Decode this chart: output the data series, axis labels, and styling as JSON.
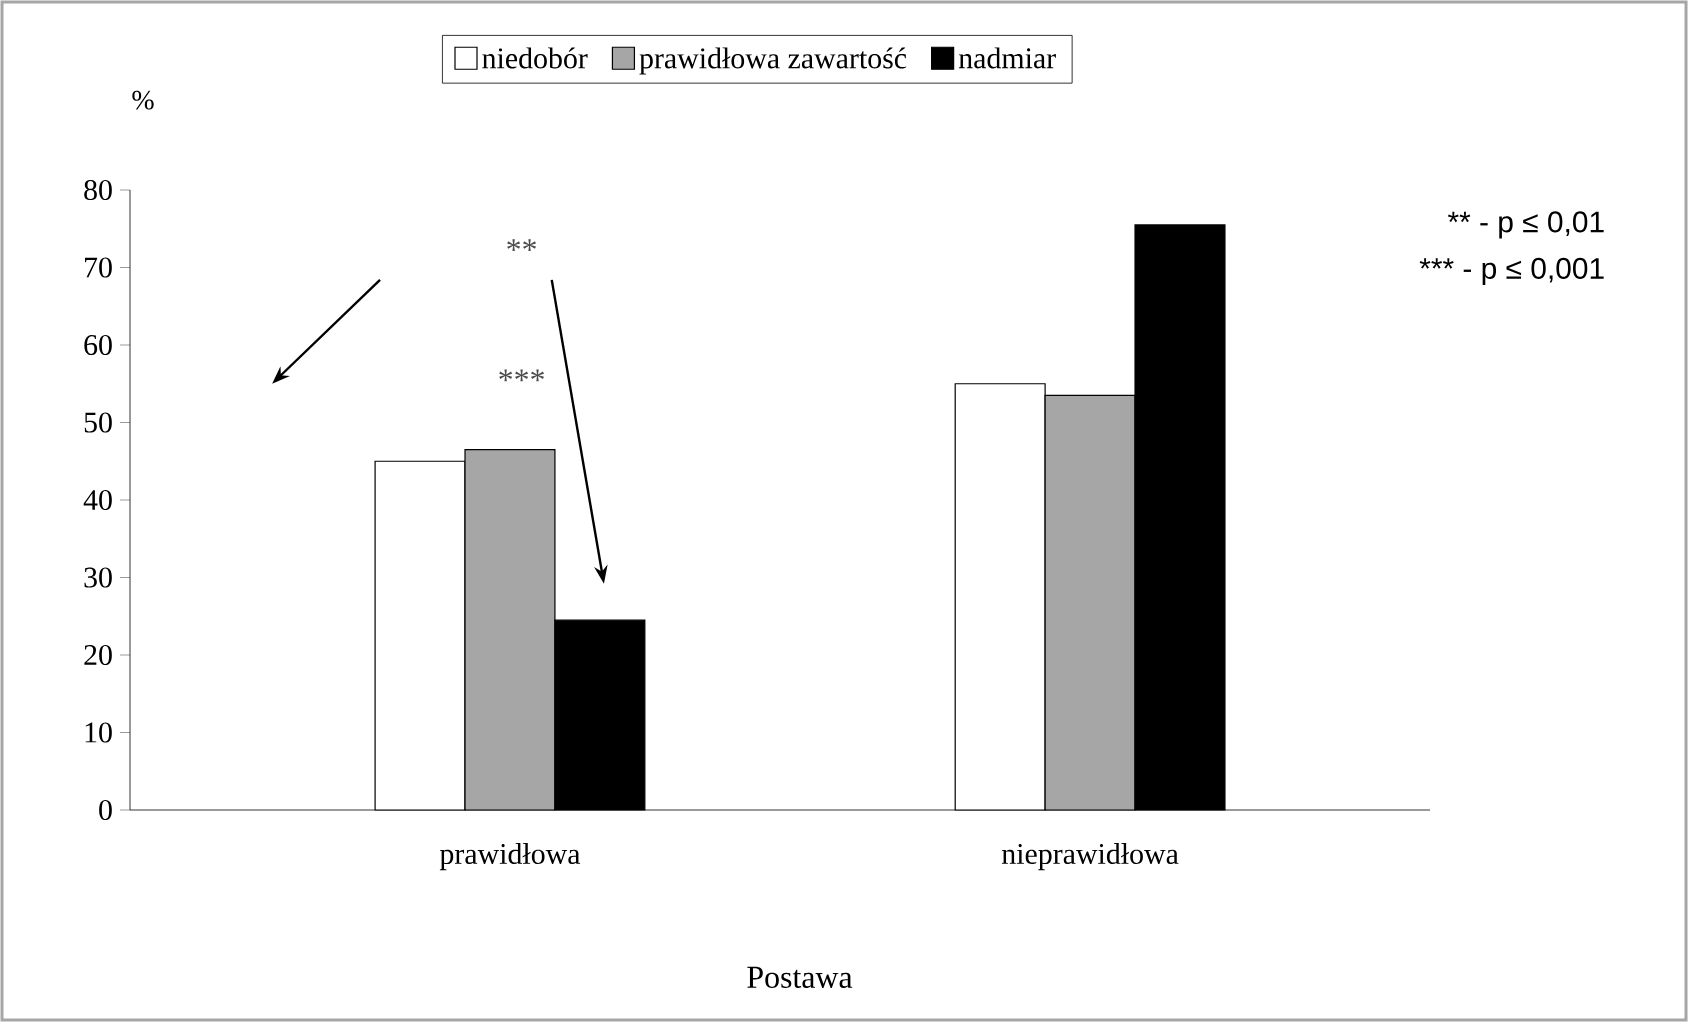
{
  "chart_data": {
    "type": "bar",
    "ylabel": "%",
    "xlabel": "Postawa",
    "categories": [
      "prawidłowa",
      "nieprawidłowa"
    ],
    "series": [
      {
        "name": "niedobór",
        "color": "#ffffff",
        "values": [
          45,
          55
        ]
      },
      {
        "name": "prawidłowa zawartość",
        "color": "#a6a6a6",
        "values": [
          46.5,
          53.5
        ]
      },
      {
        "name": "nadmiar",
        "color": "#000000",
        "values": [
          24.5,
          75.5
        ]
      }
    ],
    "ylim": [
      0,
      80
    ],
    "yticks": [
      0,
      10,
      20,
      30,
      40,
      50,
      60,
      70,
      80
    ],
    "legend": "top",
    "grid": false,
    "annotations": [
      "**",
      "***",
      "** - p ≤ 0,01",
      "*** - p ≤ 0,001"
    ]
  }
}
